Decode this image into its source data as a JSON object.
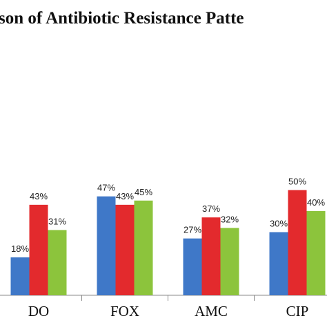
{
  "chart_data": {
    "type": "bar",
    "title": "son of Antibiotic  Resistance Patte",
    "categories": [
      "DO",
      "FOX",
      "AMC",
      "CIP"
    ],
    "series": [
      {
        "color": "#3f78c8",
        "values": [
          18,
          47,
          27,
          30
        ],
        "value_labels": [
          "18%",
          "47%",
          "27%",
          "30%"
        ]
      },
      {
        "color": "#e32a2d",
        "values": [
          43,
          43,
          37,
          50
        ],
        "value_labels": [
          "43%",
          "43%",
          "37%",
          "50%"
        ]
      },
      {
        "color": "#8cc43c",
        "values": [
          31,
          45,
          32,
          40
        ],
        "value_labels": [
          "31%",
          "45%",
          "32%",
          "40%"
        ]
      }
    ]
  }
}
